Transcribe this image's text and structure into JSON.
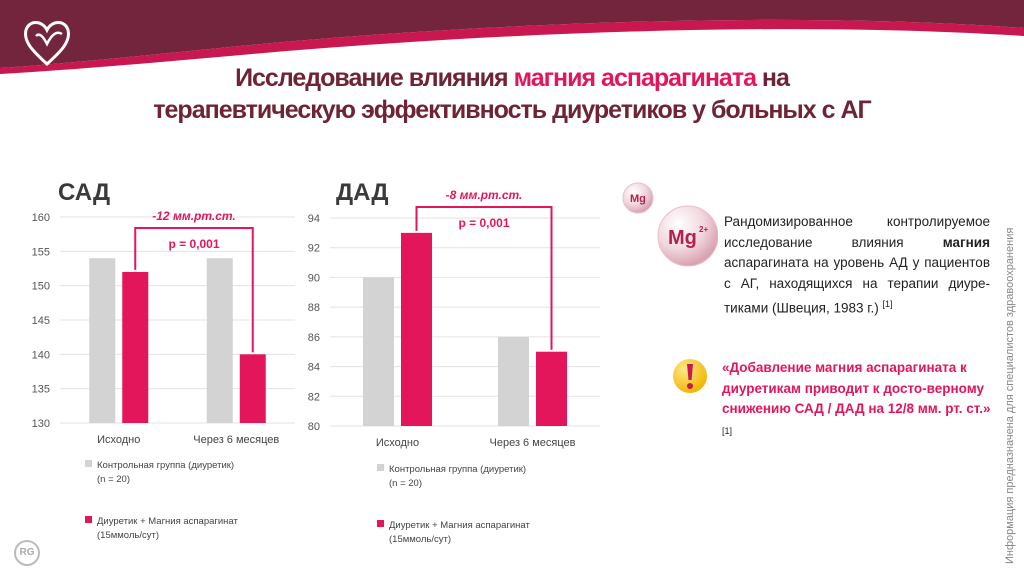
{
  "header": {
    "title_line1_a": "Исследование влияния ",
    "title_line1_b": "магния аспарагината",
    "title_line1_c": " на",
    "title_line2": "терапевтическую эффективность диуретиков у больных с АГ"
  },
  "colors": {
    "accent": "#e3165b",
    "title": "#6e2436",
    "control_bar": "#d4d3d3",
    "treatment_bar": "#e3165b"
  },
  "icons": [
    "heart-logo-icon",
    "magnesium-ion-icon",
    "exclamation-icon",
    "rg-logo-icon"
  ],
  "mg_icon": {
    "big": "Mg",
    "small": "Mg",
    "charge": "2+"
  },
  "chart_data": [
    {
      "type": "bar",
      "title": "САД",
      "categories": [
        "Исходно",
        "Через 6 месяцев"
      ],
      "series": [
        {
          "name": "Контрольная группа (диуретик)",
          "name_line2": "(n = 20)",
          "values": [
            154,
            154
          ]
        },
        {
          "name": "Диуретик + Магния аспарагинат",
          "name_line2": "(15ммоль/сут)",
          "values": [
            152,
            140
          ]
        }
      ],
      "ylim": [
        130,
        160
      ],
      "yticks": [
        130,
        135,
        140,
        145,
        150,
        155,
        160
      ],
      "annotations": {
        "delta": "-12 мм.рт.ст.",
        "p": "p = 0,001"
      },
      "legend": "bottom",
      "grid": true
    },
    {
      "type": "bar",
      "title": "ДАД",
      "categories": [
        "Исходно",
        "Через 6 месяцев"
      ],
      "series": [
        {
          "name": "Контрольная группа (диуретик)",
          "name_line2": "(n = 20)",
          "values": [
            90,
            86
          ]
        },
        {
          "name": "Диуретик + Магния аспарагинат",
          "name_line2": "(15ммоль/сут)",
          "values": [
            93,
            85
          ]
        }
      ],
      "ylim": [
        80,
        94
      ],
      "yticks": [
        80,
        82,
        84,
        86,
        88,
        90,
        92,
        94
      ],
      "annotations": {
        "delta": "-8 мм.рт.ст.",
        "p": "p = 0,001"
      },
      "legend": "bottom",
      "grid": true
    }
  ],
  "description": {
    "text_a": "Рандомизированное контролируемое исследование влияния ",
    "text_bold": "магния",
    "text_b": " аспарагината на уровень АД у пациентов с АГ, находящихся на терапии диуре-тиками (Швеция, 1983 г.) ",
    "ref": "[1]"
  },
  "quote": {
    "text": "«Добавление магния аспарагината к диуретикам приводит к досто-верному снижению САД / ДАД на 12/8 мм. рт. ст.»",
    "ref": " [1]"
  },
  "side_note": "Информация предназначена для специалистов здравоохранения",
  "corner_logo": "RG"
}
